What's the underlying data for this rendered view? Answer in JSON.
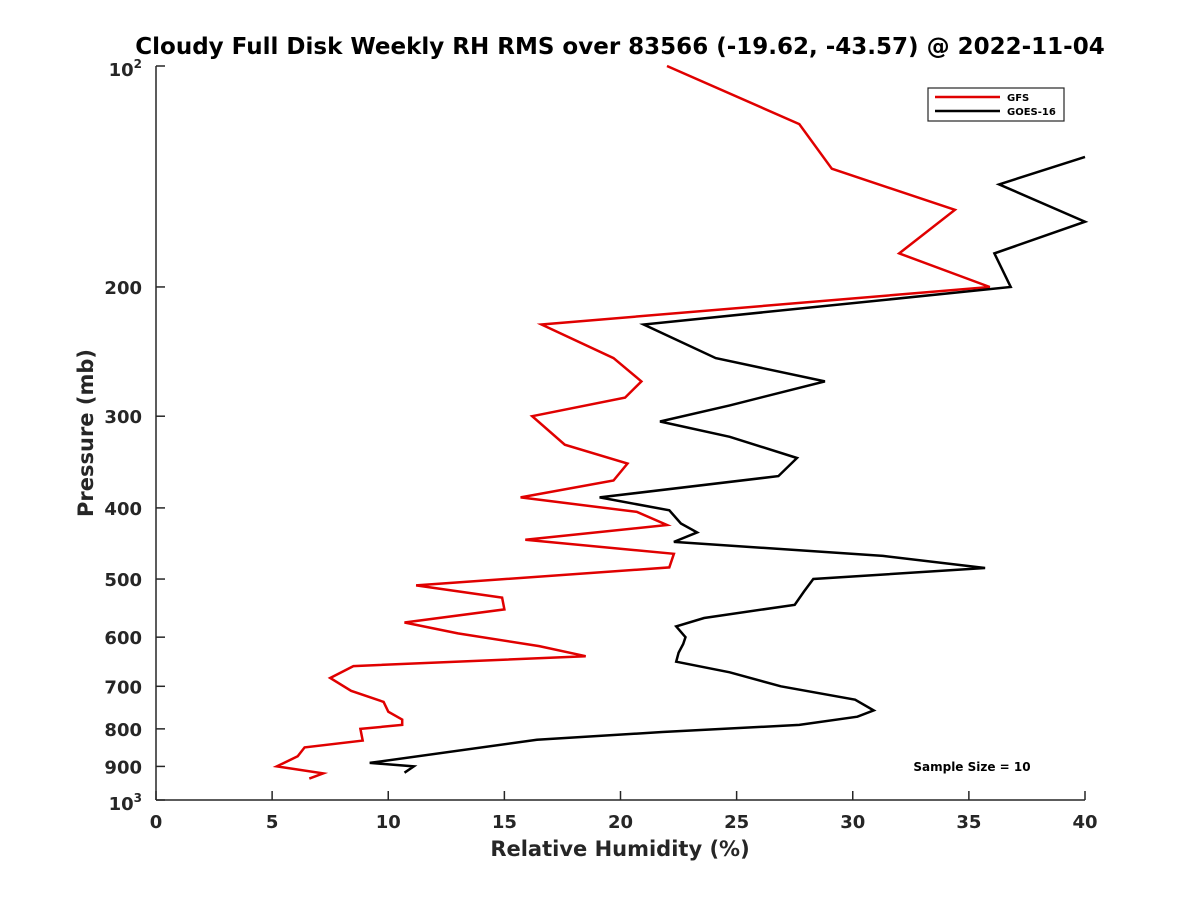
{
  "chart_data": {
    "type": "line",
    "title": "Cloudy Full Disk Weekly RH RMS over 83566 (-19.62, -43.57) @ 2022-11-04",
    "xlabel": "Relative Humidity (%)",
    "ylabel": "Pressure (mb)",
    "xlim": [
      0,
      40
    ],
    "ylim": [
      100,
      1000
    ],
    "yscale": "log",
    "y_reversed": true,
    "xticks": [
      0,
      5,
      10,
      15,
      20,
      25,
      30,
      35,
      40
    ],
    "xtick_labels": [
      "0",
      "5",
      "10",
      "15",
      "20",
      "25",
      "30",
      "35",
      "40"
    ],
    "yticks": [
      200,
      300,
      400,
      500,
      600,
      700,
      800,
      900
    ],
    "ytick_labels": [
      "200",
      "300",
      "400",
      "500",
      "600",
      "700",
      "800",
      "900"
    ],
    "y_end_labels": {
      "top_base": "10",
      "top_exp": "2",
      "bottom_base": "10",
      "bottom_exp": "3"
    },
    "grid": false,
    "legend_position": "top-right",
    "annotation": "Sample Size = 10",
    "series": [
      {
        "name": "GFS",
        "color": "#e00000",
        "x": [
          22.0,
          27.7,
          29.1,
          34.4,
          32.0,
          35.9,
          16.6,
          19.7,
          20.9,
          20.2,
          16.2,
          17.6,
          20.3,
          19.7,
          15.7,
          20.7,
          22.0,
          15.9,
          22.3,
          22.1,
          11.2,
          14.9,
          15.0,
          10.7,
          13.0,
          16.5,
          18.5,
          8.5,
          7.5,
          8.4,
          9.8,
          10.0,
          10.6,
          10.6,
          8.8,
          8.9,
          6.4,
          6.1,
          5.2,
          7.2,
          6.6
        ],
        "y": [
          100,
          120,
          138,
          157,
          180,
          200,
          225,
          250,
          269,
          283,
          300,
          328,
          348,
          367,
          387,
          405,
          422,
          442,
          462,
          482,
          510,
          530,
          550,
          573,
          593,
          617,
          637,
          657,
          682,
          710,
          735,
          758,
          777,
          790,
          800,
          830,
          848,
          872,
          900,
          920,
          935
        ]
      },
      {
        "name": "GOES-16",
        "color": "#000000",
        "x": [
          40.0,
          36.3,
          40.0,
          36.1,
          36.8,
          21.0,
          24.1,
          28.8,
          24.7,
          21.7,
          24.7,
          27.6,
          26.8,
          19.1,
          22.1,
          22.6,
          23.3,
          22.3,
          31.3,
          35.7,
          28.3,
          27.9,
          27.5,
          23.6,
          22.4,
          22.8,
          22.7,
          22.5,
          22.4,
          24.7,
          26.9,
          30.1,
          30.9,
          30.2,
          27.7,
          21.8,
          16.4,
          9.2,
          11.1,
          10.7
        ],
        "y": [
          133,
          145,
          163,
          180,
          200,
          225,
          250,
          269,
          290,
          305,
          320,
          342,
          362,
          387,
          403,
          420,
          432,
          445,
          465,
          483,
          500,
          520,
          542,
          565,
          580,
          600,
          613,
          630,
          648,
          670,
          700,
          730,
          755,
          770,
          790,
          808,
          828,
          890,
          900,
          918
        ]
      }
    ]
  }
}
